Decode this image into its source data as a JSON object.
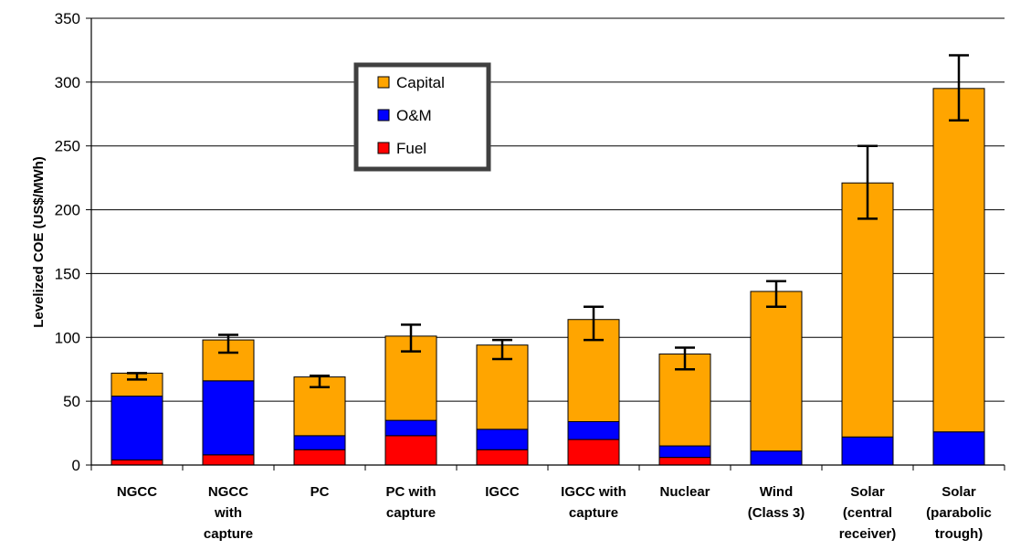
{
  "chart_data": {
    "type": "bar",
    "stacked": true,
    "ylabel": "Levelized COE (US$/MWh)",
    "xlabel": "",
    "ylim": [
      0,
      350
    ],
    "yticks": [
      0,
      50,
      100,
      150,
      200,
      250,
      300,
      350
    ],
    "grid": true,
    "legend_position": "top-left-center",
    "categories": [
      [
        "NGCC"
      ],
      [
        "NGCC",
        "with",
        "capture"
      ],
      [
        "PC"
      ],
      [
        "PC with",
        "capture"
      ],
      [
        "IGCC"
      ],
      [
        "IGCC with",
        "capture"
      ],
      [
        "Nuclear"
      ],
      [
        "Wind",
        "(Class 3)"
      ],
      [
        "Solar",
        "(central",
        "receiver)"
      ],
      [
        "Solar",
        "(parabolic",
        "trough)"
      ]
    ],
    "series": [
      {
        "name": "Fuel",
        "color": "#ff0000",
        "values": [
          4,
          8,
          12,
          23,
          12,
          20,
          6,
          0,
          0,
          0
        ]
      },
      {
        "name": "O&M",
        "color": "#0000ff",
        "values": [
          50,
          58,
          11,
          12,
          16,
          14,
          9,
          11,
          22,
          26
        ]
      },
      {
        "name": "Capital",
        "color": "#ffa500",
        "values": [
          18,
          32,
          46,
          66,
          66,
          80,
          72,
          125,
          199,
          269
        ]
      }
    ],
    "legend_order": [
      "Capital",
      "O&M",
      "Fuel"
    ],
    "error_bars": [
      {
        "low": 67,
        "high": 72
      },
      {
        "low": 88,
        "high": 102
      },
      {
        "low": 61,
        "high": 70
      },
      {
        "low": 89,
        "high": 110
      },
      {
        "low": 83,
        "high": 98
      },
      {
        "low": 98,
        "high": 124
      },
      {
        "low": 75,
        "high": 92
      },
      {
        "low": 124,
        "high": 144
      },
      {
        "low": 193,
        "high": 250
      },
      {
        "low": 270,
        "high": 321
      }
    ]
  }
}
